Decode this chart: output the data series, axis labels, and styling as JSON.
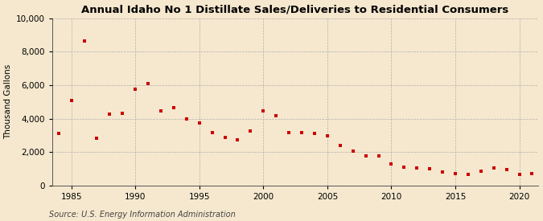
{
  "title": "Annual Idaho No 1 Distillate Sales/Deliveries to Residential Consumers",
  "ylabel": "Thousand Gallons",
  "source": "Source: U.S. Energy Information Administration",
  "background_color": "#f5e8ce",
  "plot_bg_color": "#f5e8ce",
  "marker_color": "#cc0000",
  "grid_color": "#aaaaaa",
  "years": [
    1984,
    1985,
    1986,
    1987,
    1988,
    1989,
    1990,
    1991,
    1992,
    1993,
    1994,
    1995,
    1996,
    1997,
    1998,
    1999,
    2000,
    2001,
    2002,
    2003,
    2004,
    2005,
    2006,
    2007,
    2008,
    2009,
    2010,
    2011,
    2012,
    2013,
    2014,
    2015,
    2016,
    2017,
    2018,
    2019,
    2020,
    2021
  ],
  "values": [
    3100,
    5100,
    8650,
    2850,
    4250,
    4300,
    5750,
    6100,
    4450,
    4650,
    4000,
    3750,
    3150,
    2900,
    2750,
    3250,
    4450,
    4200,
    3150,
    3150,
    3100,
    3000,
    2400,
    2050,
    1800,
    1800,
    1300,
    1100,
    1050,
    1000,
    800,
    750,
    700,
    850,
    1050,
    950,
    700,
    750
  ],
  "xlim": [
    1983.5,
    2021.5
  ],
  "ylim": [
    0,
    10000
  ],
  "yticks": [
    0,
    2000,
    4000,
    6000,
    8000,
    10000
  ],
  "xticks": [
    1985,
    1990,
    1995,
    2000,
    2005,
    2010,
    2015,
    2020
  ],
  "title_fontsize": 9.5,
  "label_fontsize": 7.5,
  "tick_fontsize": 7.5,
  "source_fontsize": 7
}
